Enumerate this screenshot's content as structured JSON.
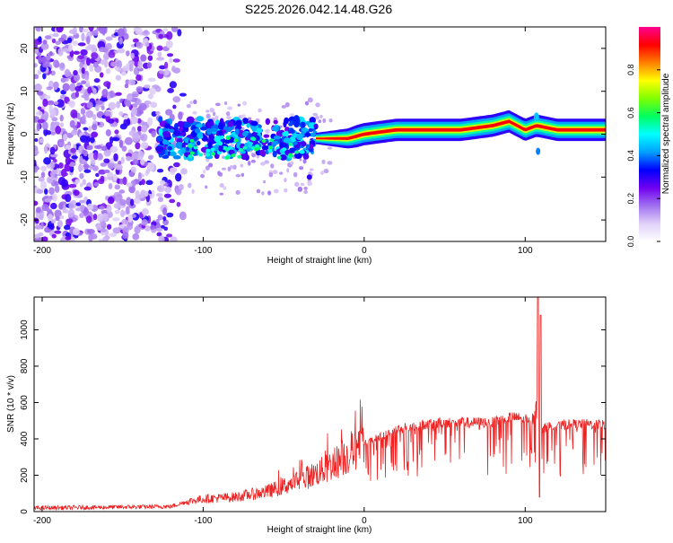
{
  "page_title": "S225.2026.042.14.48.G26",
  "chart_data": [
    {
      "type": "heatmap",
      "title": "S225.2026.042.14.48.G26",
      "xlabel": "Height of straight line (km)",
      "ylabel": "Frequency (Hz)",
      "xlim": [
        -205,
        150
      ],
      "ylim": [
        -25,
        25
      ],
      "x_ticks": [
        -200,
        -100,
        0,
        100
      ],
      "y_ticks": [
        -20,
        -10,
        0,
        10,
        20
      ],
      "colorbar": {
        "label": "Normalized spectral amplitude",
        "range": [
          0,
          1
        ],
        "ticks": [
          0.0,
          0.2,
          0.4,
          0.6,
          0.8
        ],
        "tick_labels": [
          "0.0",
          "0.2",
          "0.4",
          "0.6",
          "0.8"
        ],
        "colors": [
          "#ffffff",
          "#e0d0f8",
          "#a070f0",
          "#7000f0",
          "#0000ff",
          "#00a0ff",
          "#00ffff",
          "#00ff60",
          "#80ff00",
          "#ffff00",
          "#ff8000",
          "#ff0000",
          "#ff0090"
        ]
      },
      "regions": [
        {
          "name": "noise",
          "x": [
            -205,
            -110
          ],
          "freq": [
            -25,
            25
          ],
          "amplitude": 0.15
        },
        {
          "name": "onset",
          "x": [
            -128,
            -30
          ],
          "freq": [
            -6,
            5
          ],
          "amplitude": 0.35
        },
        {
          "name": "tone",
          "x": [
            -30,
            150
          ],
          "freq": [
            -1.5,
            1.5
          ],
          "amplitude": 0.95
        }
      ],
      "tone_center_hz": [
        [
          -30,
          -1
        ],
        [
          -10,
          -1
        ],
        [
          0,
          0
        ],
        [
          20,
          1
        ],
        [
          60,
          1
        ],
        [
          80,
          2
        ],
        [
          90,
          3
        ],
        [
          100,
          1
        ],
        [
          107,
          2
        ],
        [
          120,
          1
        ],
        [
          150,
          1
        ]
      ]
    },
    {
      "type": "line",
      "xlabel": "Height of straight line (km)",
      "ylabel": "SNR (10 * v/v)",
      "xlim": [
        -205,
        150
      ],
      "ylim": [
        0,
        1180
      ],
      "x_ticks": [
        -200,
        -100,
        0,
        100
      ],
      "y_ticks": [
        0,
        200,
        400,
        600,
        800,
        1000
      ],
      "series": [
        {
          "name": "SNR",
          "color": "#ee2222",
          "x": [
            -205,
            -180,
            -150,
            -120,
            -110,
            -100,
            -80,
            -60,
            -40,
            -25,
            -10,
            0,
            10,
            20,
            30,
            40,
            50,
            60,
            70,
            80,
            85,
            90,
            100,
            105,
            108,
            110,
            115,
            130,
            150
          ],
          "mean": [
            20,
            22,
            25,
            28,
            55,
            70,
            80,
            110,
            170,
            230,
            310,
            370,
            410,
            450,
            470,
            480,
            490,
            490,
            490,
            490,
            510,
            520,
            510,
            520,
            700,
            450,
            470,
            480,
            480
          ],
          "spike_max": 1180,
          "spike_x": 108
        }
      ]
    }
  ]
}
